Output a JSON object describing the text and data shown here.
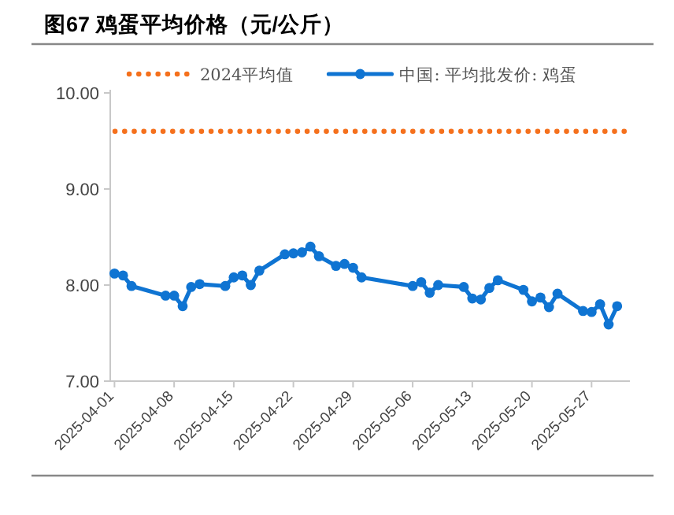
{
  "chart_data": {
    "type": "line",
    "title": "图67 鸡蛋平均价格（元/公斤）",
    "x": [
      "2025-04-01",
      "2025-04-02",
      "2025-04-03",
      "2025-04-07",
      "2025-04-08",
      "2025-04-09",
      "2025-04-10",
      "2025-04-11",
      "2025-04-14",
      "2025-04-15",
      "2025-04-16",
      "2025-04-17",
      "2025-04-18",
      "2025-04-21",
      "2025-04-22",
      "2025-04-23",
      "2025-04-24",
      "2025-04-25",
      "2025-04-27",
      "2025-04-28",
      "2025-04-29",
      "2025-04-30",
      "2025-05-06",
      "2025-05-07",
      "2025-05-08",
      "2025-05-09",
      "2025-05-12",
      "2025-05-13",
      "2025-05-14",
      "2025-05-15",
      "2025-05-16",
      "2025-05-19",
      "2025-05-20",
      "2025-05-21",
      "2025-05-22",
      "2025-05-23",
      "2025-05-26",
      "2025-05-27",
      "2025-05-28",
      "2025-05-29",
      "2025-05-30"
    ],
    "series": [
      {
        "name": "中国: 平均批发价: 鸡蛋",
        "color": "#0f74d2",
        "marker": "circle",
        "line_style": "solid",
        "values": [
          8.12,
          8.1,
          7.99,
          7.89,
          7.89,
          7.78,
          7.98,
          8.01,
          7.99,
          8.08,
          8.1,
          8.0,
          8.15,
          8.32,
          8.33,
          8.34,
          8.4,
          8.3,
          8.2,
          8.22,
          8.18,
          8.08,
          7.99,
          8.03,
          7.92,
          8.0,
          7.98,
          7.86,
          7.85,
          7.97,
          8.05,
          7.95,
          7.83,
          7.87,
          7.77,
          7.91,
          7.73,
          7.72,
          7.8,
          7.59,
          7.78
        ]
      }
    ],
    "ref_lines": [
      {
        "axis": "y",
        "value": 9.6,
        "label": "2024平均值",
        "color": "#f5701c",
        "line_style": "dotted"
      }
    ],
    "xlim": [
      "2025-03-31T12:00",
      "2025-05-31T12:00"
    ],
    "xticks": [
      "2025-04-01",
      "2025-04-08",
      "2025-04-15",
      "2025-04-22",
      "2025-04-29",
      "2025-05-06",
      "2025-05-13",
      "2025-05-20",
      "2025-05-27"
    ],
    "ylim": [
      7,
      10
    ],
    "yticks": [
      {
        "value": 7,
        "label": "7.00"
      },
      {
        "value": 8,
        "label": "8.00"
      },
      {
        "value": 9,
        "label": "9.00"
      },
      {
        "value": 10,
        "label": "10.00"
      }
    ],
    "grid": false,
    "legend": "top"
  }
}
